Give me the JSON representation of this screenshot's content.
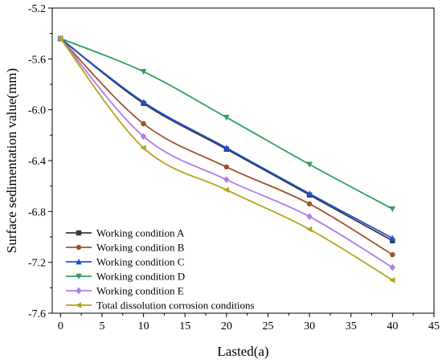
{
  "chart_data": {
    "type": "line",
    "title": "",
    "xlabel": "Lasted(a)",
    "ylabel": "Surface sedimentation value(mm)",
    "xlim": [
      -1,
      45
    ],
    "ylim": [
      -7.6,
      -5.2
    ],
    "x_ticks": [
      "0",
      "5",
      "10",
      "15",
      "20",
      "25",
      "30",
      "35",
      "40",
      "45"
    ],
    "y_ticks": [
      "-5.2",
      "-5.6",
      "-6.0",
      "-6.4",
      "-6.8",
      "-7.2",
      "-7.6"
    ],
    "grid": false,
    "legend_position": "bottom-left",
    "series": [
      {
        "name": "Working condition A",
        "color": "#3a3a3a",
        "marker": "square",
        "x": [
          0,
          10,
          20,
          30,
          40
        ],
        "y": [
          -5.44,
          -5.95,
          -6.31,
          -6.67,
          -7.03
        ]
      },
      {
        "name": "Working condition B",
        "color": "#a0522d",
        "marker": "circle",
        "x": [
          0,
          10,
          20,
          30,
          40
        ],
        "y": [
          -5.44,
          -6.11,
          -6.45,
          -6.74,
          -7.14
        ]
      },
      {
        "name": "Working condition C",
        "color": "#1f4fd8",
        "marker": "triangle-up",
        "x": [
          0,
          10,
          20,
          30,
          40
        ],
        "y": [
          -5.44,
          -5.94,
          -6.3,
          -6.66,
          -7.01
        ]
      },
      {
        "name": "Working condition D",
        "color": "#2e9e5b",
        "marker": "triangle-down",
        "x": [
          0,
          10,
          20,
          30,
          40
        ],
        "y": [
          -5.44,
          -5.7,
          -6.06,
          -6.43,
          -6.78
        ]
      },
      {
        "name": "Working condition E",
        "color": "#b07be6",
        "marker": "diamond",
        "x": [
          0,
          10,
          20,
          30,
          40
        ],
        "y": [
          -5.44,
          -6.21,
          -6.55,
          -6.84,
          -7.24
        ]
      },
      {
        "name": "Total dissolution corrosion conditions",
        "color": "#b5a21a",
        "marker": "triangle-left",
        "x": [
          0,
          10,
          20,
          30,
          40
        ],
        "y": [
          -5.44,
          -6.3,
          -6.63,
          -6.94,
          -7.34
        ]
      }
    ]
  }
}
